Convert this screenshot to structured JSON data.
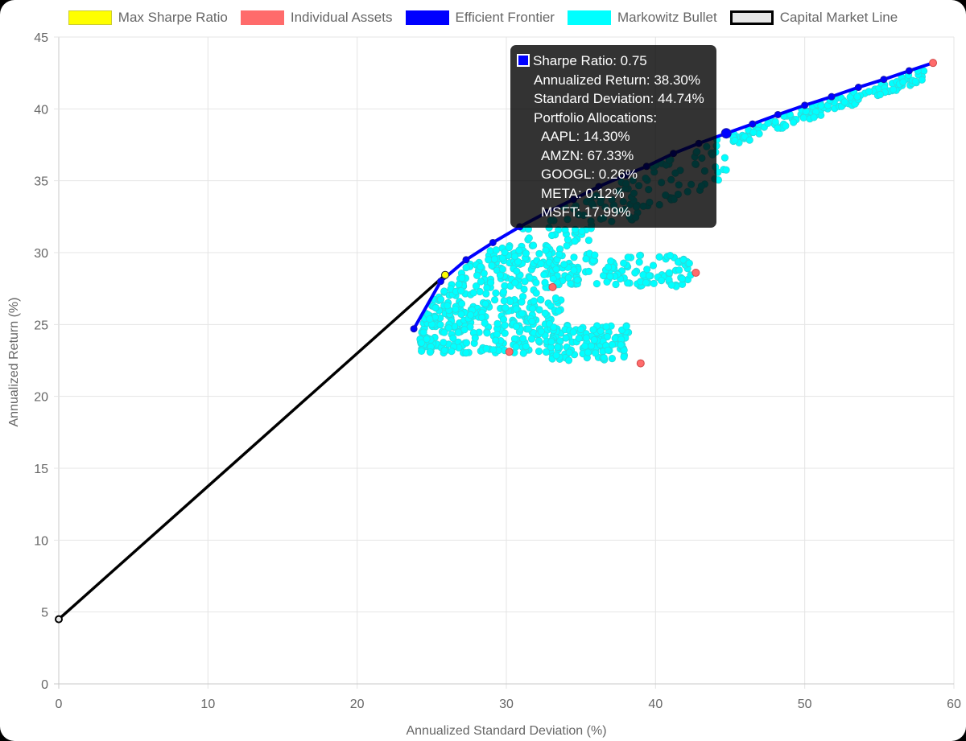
{
  "chart_data": {
    "type": "scatter",
    "xlabel": "Annualized Standard Deviation (%)",
    "ylabel": "Annualized Return (%)",
    "xlim": [
      0,
      60
    ],
    "ylim": [
      0,
      45
    ],
    "x_ticks": [
      "0",
      "10",
      "20",
      "30",
      "40",
      "50",
      "60"
    ],
    "y_ticks": [
      "0",
      "5",
      "10",
      "15",
      "20",
      "25",
      "30",
      "35",
      "40",
      "45"
    ],
    "grid": true,
    "legend_position": "top",
    "legend": [
      {
        "name": "Max Sharpe Ratio",
        "color": "#ffff00",
        "border": "#cccc33"
      },
      {
        "name": "Individual Assets",
        "color": "#ff6b6b",
        "border": "#ff6b6b"
      },
      {
        "name": "Efficient Frontier",
        "color": "#0000ff",
        "border": "#0000ff"
      },
      {
        "name": "Markowitz Bullet",
        "color": "#00ffff",
        "border": "#00ffff"
      },
      {
        "name": "Capital Market Line",
        "color": "#e6e6e6",
        "border": "#000000"
      }
    ],
    "series": [
      {
        "name": "Capital Market Line",
        "type": "line",
        "color": "#000000",
        "points": [
          [
            0,
            4.5
          ],
          [
            25.9,
            28.45
          ]
        ]
      },
      {
        "name": "Efficient Frontier",
        "type": "line",
        "color": "#0000ff",
        "points": [
          [
            23.8,
            24.7
          ],
          [
            25.6,
            28.0
          ],
          [
            27.3,
            29.5
          ],
          [
            29.1,
            30.7
          ],
          [
            30.9,
            31.8
          ],
          [
            32.7,
            32.8
          ],
          [
            34.5,
            33.7
          ],
          [
            36.2,
            34.6
          ],
          [
            38.0,
            35.4
          ],
          [
            39.4,
            36.0
          ],
          [
            41.2,
            36.9
          ],
          [
            42.9,
            37.6
          ],
          [
            44.74,
            38.3
          ],
          [
            46.5,
            38.95
          ],
          [
            48.2,
            39.6
          ],
          [
            50.0,
            40.25
          ],
          [
            51.8,
            40.85
          ],
          [
            53.6,
            41.5
          ],
          [
            55.3,
            42.05
          ],
          [
            57.0,
            42.65
          ],
          [
            58.6,
            43.2
          ]
        ]
      },
      {
        "name": "Individual Assets",
        "type": "scatter",
        "color": "#ff6b6b",
        "points": [
          [
            58.6,
            43.2
          ],
          [
            42.7,
            28.6
          ],
          [
            33.1,
            27.6
          ],
          [
            30.2,
            23.1
          ],
          [
            39.0,
            22.3
          ]
        ]
      },
      {
        "name": "Max Sharpe Ratio",
        "type": "scatter",
        "color": "#ffff00",
        "points": [
          [
            25.9,
            28.45
          ]
        ]
      },
      {
        "name": "Markowitz Bullet",
        "type": "scatter",
        "color": "#00ffff",
        "description_count": 900
      }
    ],
    "tooltip": {
      "title": "Sharpe Ratio: 0.75",
      "return": "Annualized Return: 38.30%",
      "std": "Standard Deviation: 44.74%",
      "alloc_header": "Portfolio Allocations:",
      "allocations": [
        "AAPL: 14.30%",
        "AMZN: 67.33%",
        "GOOGL: 0.26%",
        "META: 0.12%",
        "MSFT: 17.99%"
      ],
      "point": [
        44.74,
        38.3
      ]
    }
  }
}
